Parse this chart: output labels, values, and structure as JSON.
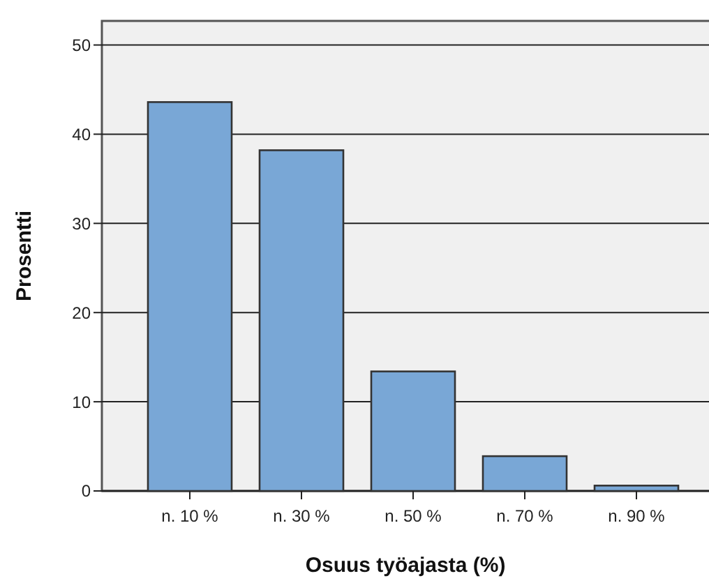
{
  "chart_data": {
    "type": "bar",
    "xlabel": "Osuus työajasta (%)",
    "ylabel": "Prosentti",
    "categories": [
      "n. 10 %",
      "n. 30 %",
      "n. 50 %",
      "n. 70 %",
      "n. 90 %"
    ],
    "values": [
      43.6,
      38.2,
      13.4,
      3.9,
      0.6
    ],
    "color": "#79a7d6",
    "ylim": [
      0,
      52.7
    ],
    "yticks": [
      0,
      10,
      20,
      30,
      40,
      50
    ],
    "grid": "y"
  }
}
